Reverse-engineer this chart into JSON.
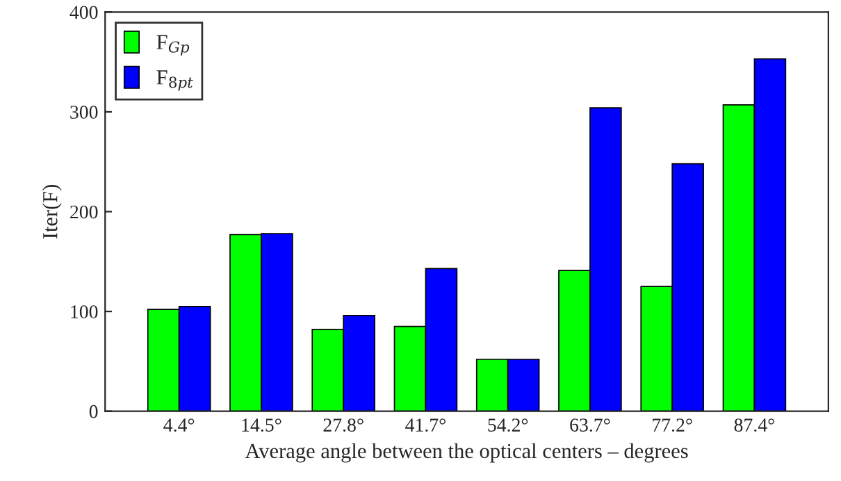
{
  "chart_data": {
    "type": "bar",
    "xlabel": "Average angle between the optical centers – degrees",
    "ylabel": "Iter(F)",
    "categories": [
      "4.4°",
      "14.5°",
      "27.8°",
      "41.7°",
      "54.2°",
      "63.7°",
      "77.2°",
      "87.4°"
    ],
    "series": [
      {
        "name": "F$_{Gp}$",
        "color": "#00ff00",
        "values": [
          102,
          177,
          82,
          85,
          52,
          141,
          125,
          307
        ]
      },
      {
        "name": "F$_{8pt}$",
        "color": "#0000ff",
        "values": [
          105,
          178,
          96,
          143,
          52,
          304,
          248,
          353
        ]
      }
    ],
    "ylim": [
      0,
      400
    ],
    "yticks": [
      0,
      100,
      200,
      300,
      400
    ],
    "legend": "top left",
    "grid": false
  }
}
